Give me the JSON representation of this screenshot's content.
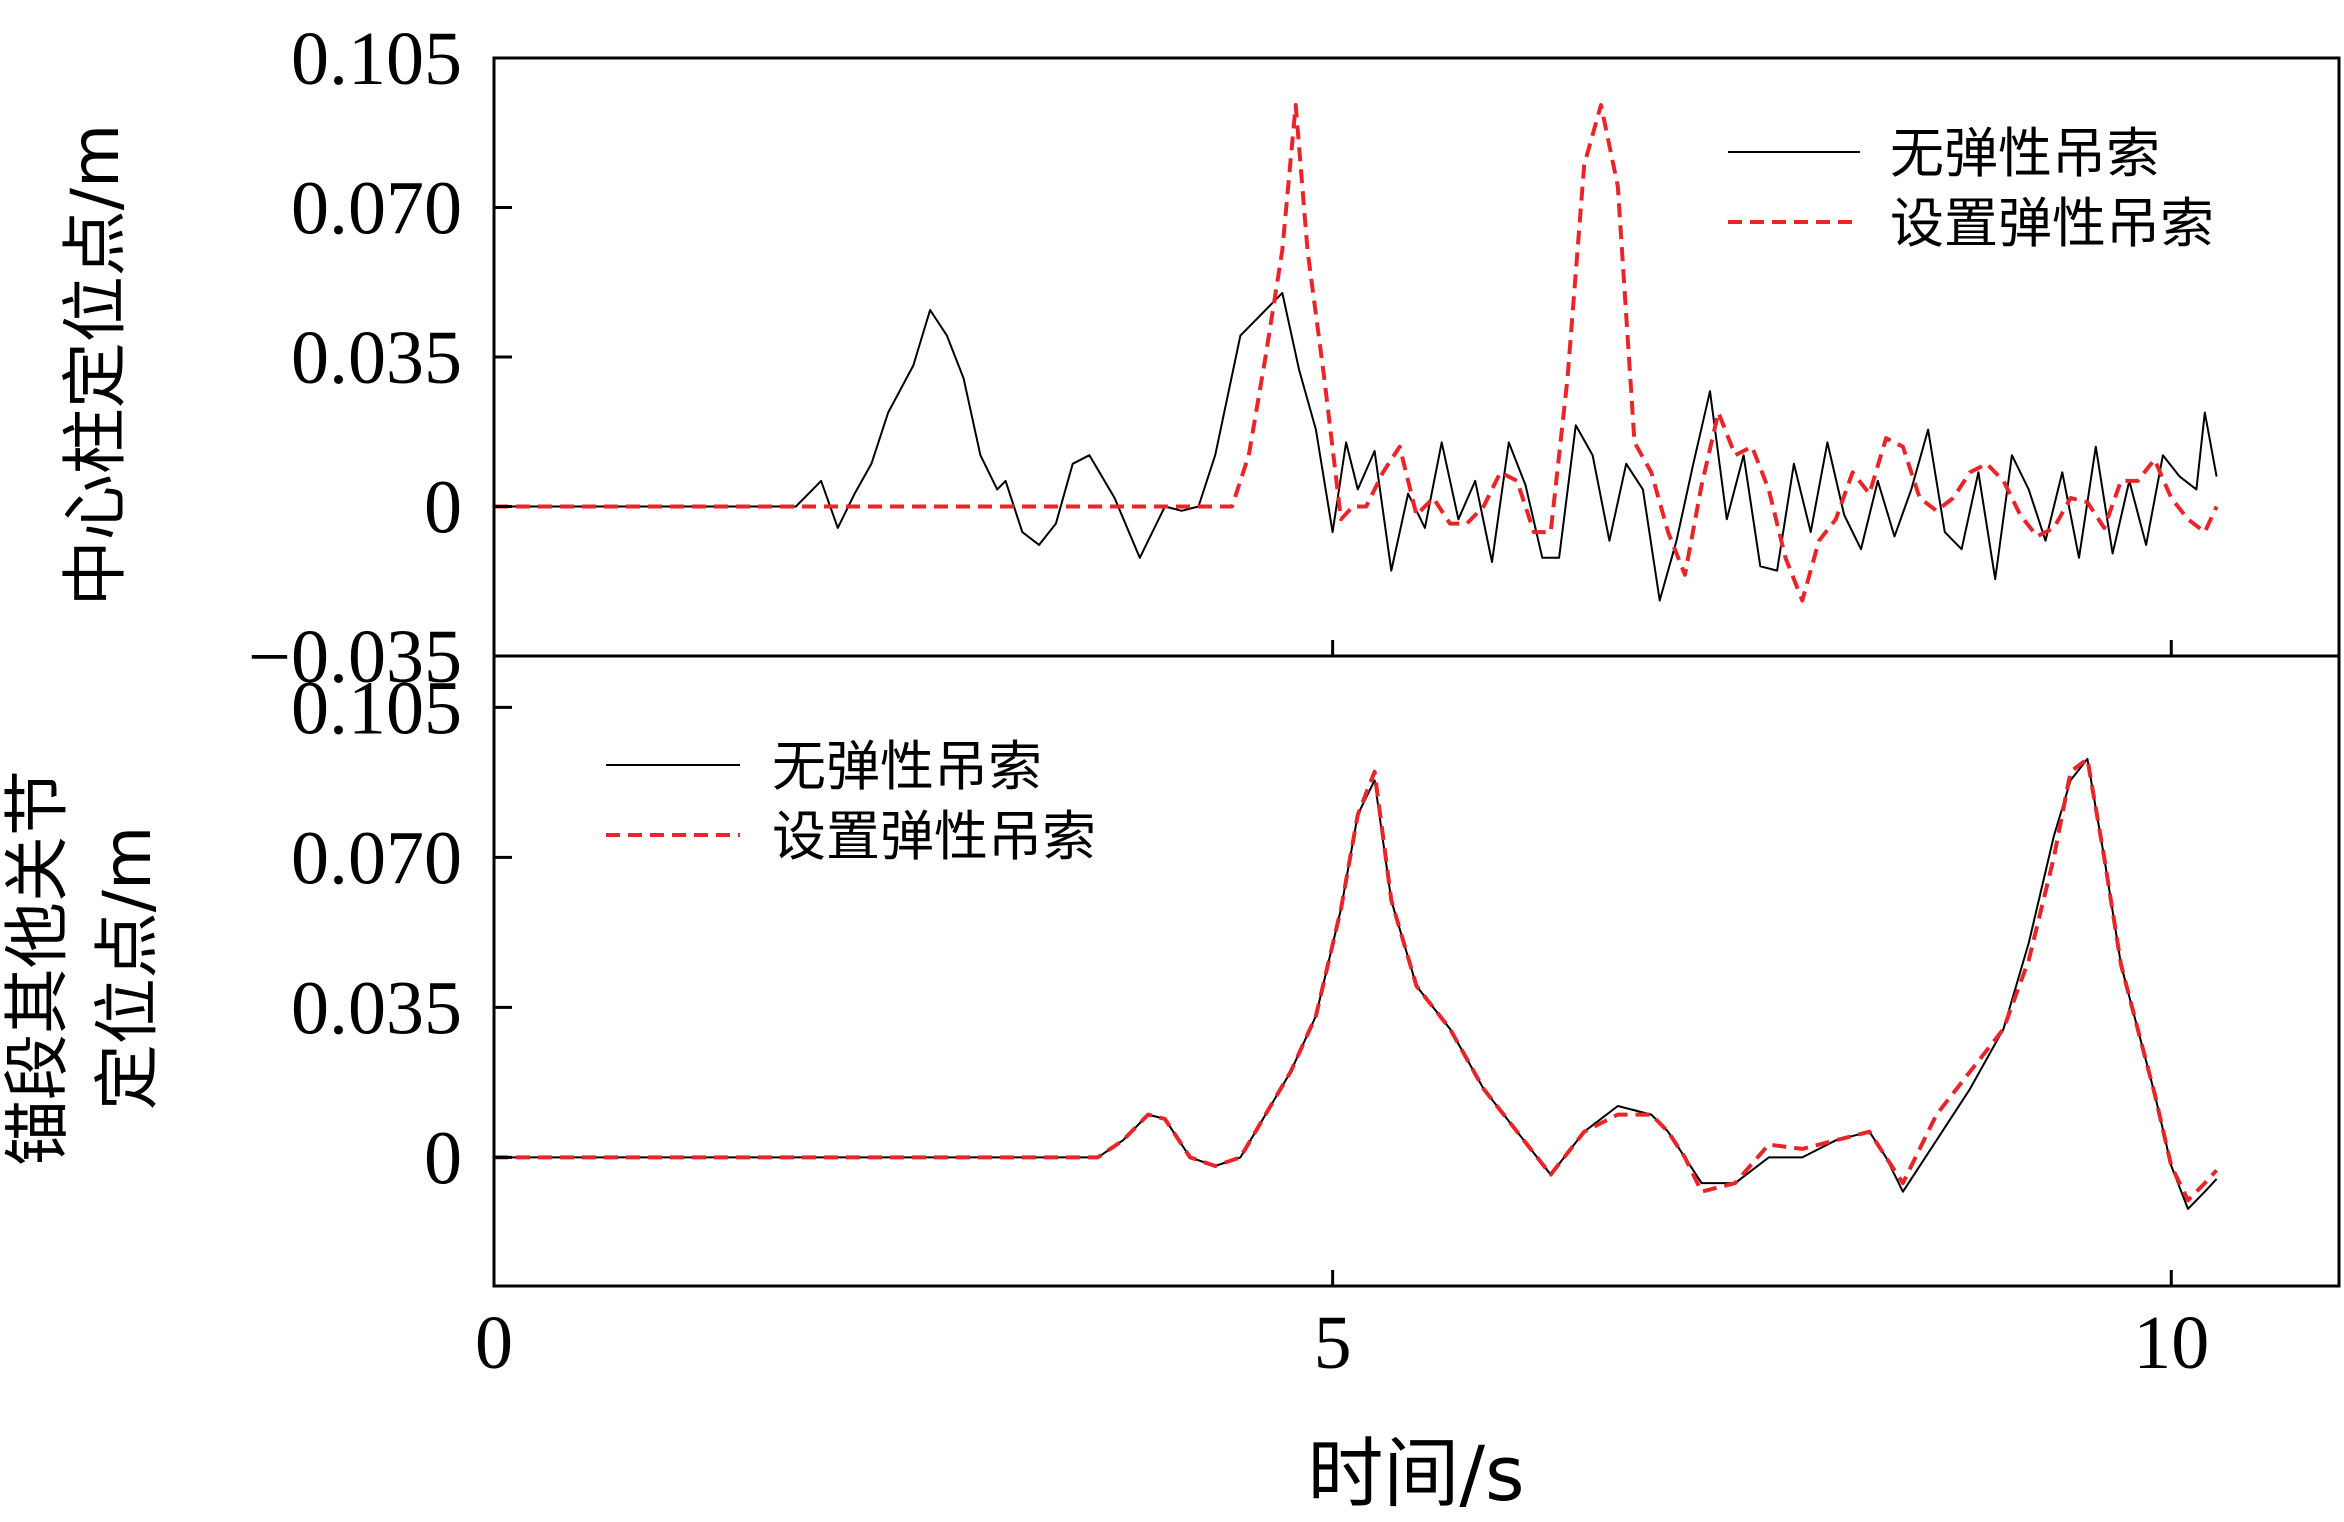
{
  "chart_data": [
    {
      "type": "line",
      "panel": "top",
      "ylabel": "中心柱定位点/m",
      "xlabel": "",
      "ylim": [
        -0.035,
        0.105
      ],
      "yticks": [
        "0.105",
        "0.070",
        "0.035",
        "0",
        "−0.035"
      ],
      "ytick_values": [
        0.105,
        0.07,
        0.035,
        0,
        -0.035
      ],
      "xlim": [
        0,
        11
      ],
      "xtick_values": [
        5,
        10
      ],
      "legend_position": "top-right",
      "series": [
        {
          "name": "无弹性吊索",
          "color": "#000000",
          "style": "solid",
          "x": [
            0,
            1,
            1.8,
            1.95,
            2.05,
            2.15,
            2.25,
            2.35,
            2.5,
            2.6,
            2.7,
            2.8,
            2.9,
            3.0,
            3.05,
            3.15,
            3.25,
            3.35,
            3.45,
            3.55,
            3.7,
            3.85,
            4.0,
            4.1,
            4.2,
            4.3,
            4.45,
            4.55,
            4.7,
            4.8,
            4.9,
            5.0,
            5.08,
            5.15,
            5.25,
            5.35,
            5.45,
            5.55,
            5.65,
            5.75,
            5.85,
            5.95,
            6.05,
            6.15,
            6.25,
            6.35,
            6.45,
            6.55,
            6.65,
            6.75,
            6.85,
            6.95,
            7.05,
            7.15,
            7.25,
            7.35,
            7.45,
            7.55,
            7.65,
            7.75,
            7.85,
            7.95,
            8.05,
            8.15,
            8.25,
            8.35,
            8.45,
            8.55,
            8.65,
            8.75,
            8.85,
            8.95,
            9.05,
            9.15,
            9.25,
            9.35,
            9.45,
            9.55,
            9.65,
            9.75,
            9.85,
            9.95,
            10.05,
            10.15,
            10.2,
            10.27
          ],
          "y": [
            0,
            0,
            0,
            0.006,
            -0.005,
            0.003,
            0.01,
            0.022,
            0.033,
            0.046,
            0.04,
            0.03,
            0.012,
            0.004,
            0.006,
            -0.006,
            -0.009,
            -0.004,
            0.01,
            0.012,
            0.002,
            -0.012,
            0.0,
            -0.001,
            0.0,
            0.012,
            0.04,
            0.044,
            0.05,
            0.032,
            0.018,
            -0.006,
            0.015,
            0.004,
            0.013,
            -0.015,
            0.003,
            -0.005,
            0.015,
            -0.003,
            0.006,
            -0.013,
            0.015,
            0.005,
            -0.012,
            -0.012,
            0.019,
            0.012,
            -0.008,
            0.01,
            0.004,
            -0.022,
            -0.008,
            0.01,
            0.027,
            -0.003,
            0.012,
            -0.014,
            -0.015,
            0.01,
            -0.006,
            0.015,
            -0.002,
            -0.01,
            0.006,
            -0.007,
            0.004,
            0.018,
            -0.006,
            -0.01,
            0.008,
            -0.017,
            0.012,
            0.004,
            -0.008,
            0.008,
            -0.012,
            0.014,
            -0.011,
            0.006,
            -0.009,
            0.012,
            0.007,
            0.004,
            0.022,
            0.007
          ]
        },
        {
          "name": "设置弹性吊索",
          "color": "#e8262a",
          "style": "dashed",
          "x": [
            0,
            1,
            2,
            3,
            4,
            4.4,
            4.5,
            4.6,
            4.7,
            4.78,
            4.85,
            4.95,
            5.05,
            5.12,
            5.2,
            5.3,
            5.4,
            5.5,
            5.6,
            5.7,
            5.8,
            5.9,
            6.0,
            6.1,
            6.2,
            6.3,
            6.4,
            6.5,
            6.6,
            6.7,
            6.8,
            6.9,
            7.0,
            7.1,
            7.2,
            7.3,
            7.4,
            7.5,
            7.6,
            7.7,
            7.8,
            7.9,
            8.0,
            8.1,
            8.2,
            8.3,
            8.4,
            8.5,
            8.6,
            8.7,
            8.8,
            8.9,
            9.0,
            9.1,
            9.2,
            9.3,
            9.4,
            9.5,
            9.6,
            9.7,
            9.8,
            9.9,
            10.0,
            10.1,
            10.2,
            10.27
          ],
          "y": [
            0,
            0,
            0,
            0,
            0,
            0.0,
            0.012,
            0.035,
            0.06,
            0.094,
            0.06,
            0.03,
            -0.003,
            0.0,
            0.0,
            0.008,
            0.014,
            -0.002,
            0.002,
            -0.004,
            -0.004,
            0.0,
            0.008,
            0.006,
            -0.006,
            -0.006,
            0.03,
            0.08,
            0.094,
            0.075,
            0.015,
            0.008,
            -0.006,
            -0.016,
            0.005,
            0.022,
            0.012,
            0.014,
            0.004,
            -0.012,
            -0.022,
            -0.008,
            -0.003,
            0.008,
            0.003,
            0.016,
            0.014,
            0.002,
            -0.001,
            0.002,
            0.008,
            0.01,
            0.006,
            -0.002,
            -0.007,
            -0.005,
            0.002,
            0.001,
            -0.005,
            0.006,
            0.006,
            0.011,
            0.002,
            -0.003,
            -0.006,
            0.0
          ]
        }
      ]
    },
    {
      "type": "line",
      "panel": "bottom",
      "ylabel": "锚段其他关节定位点/m",
      "ylabel_lines": [
        "锚段其他关节",
        "定位点/m"
      ],
      "xlabel": "时间/s",
      "ylim": [
        -0.03,
        0.117
      ],
      "yticks": [
        "0.105",
        "0.070",
        "0.035",
        "0"
      ],
      "ytick_values": [
        0.105,
        0.07,
        0.035,
        0
      ],
      "xlim": [
        0,
        11
      ],
      "xticks": [
        "0",
        "5",
        "10"
      ],
      "xtick_values": [
        0,
        5,
        10
      ],
      "legend_position": "top-left",
      "series": [
        {
          "name": "无弹性吊索",
          "color": "#000000",
          "style": "solid",
          "x": [
            0,
            1,
            2,
            3,
            3.6,
            3.75,
            3.9,
            4.0,
            4.15,
            4.3,
            4.45,
            4.6,
            4.75,
            4.9,
            5.05,
            5.15,
            5.25,
            5.35,
            5.5,
            5.7,
            5.9,
            6.1,
            6.3,
            6.5,
            6.7,
            6.9,
            7.0,
            7.1,
            7.2,
            7.4,
            7.6,
            7.8,
            8.0,
            8.2,
            8.3,
            8.4,
            8.6,
            8.8,
            9.0,
            9.15,
            9.3,
            9.4,
            9.5,
            9.6,
            9.7,
            9.8,
            9.9,
            10.0,
            10.1,
            10.2,
            10.27
          ],
          "y": [
            0,
            0,
            0,
            0,
            0,
            0.004,
            0.01,
            0.009,
            0.0,
            -0.002,
            0.0,
            0.01,
            0.02,
            0.033,
            0.058,
            0.08,
            0.088,
            0.06,
            0.04,
            0.03,
            0.016,
            0.006,
            -0.004,
            0.006,
            0.012,
            0.01,
            0.006,
            0.0,
            -0.006,
            -0.006,
            0.0,
            0.0,
            0.004,
            0.006,
            0.0,
            -0.008,
            0.004,
            0.016,
            0.03,
            0.05,
            0.075,
            0.088,
            0.093,
            0.07,
            0.045,
            0.03,
            0.015,
            -0.002,
            -0.012,
            -0.008,
            -0.005
          ]
        },
        {
          "name": "设置弹性吊索",
          "color": "#e8262a",
          "style": "dashed",
          "x": [
            0,
            1,
            2,
            3,
            3.6,
            3.75,
            3.9,
            4.0,
            4.15,
            4.3,
            4.45,
            4.6,
            4.75,
            4.9,
            5.05,
            5.15,
            5.25,
            5.35,
            5.5,
            5.7,
            5.9,
            6.1,
            6.3,
            6.5,
            6.7,
            6.9,
            7.0,
            7.1,
            7.2,
            7.4,
            7.6,
            7.8,
            8.0,
            8.2,
            8.3,
            8.4,
            8.6,
            8.8,
            9.0,
            9.15,
            9.3,
            9.4,
            9.5,
            9.6,
            9.7,
            9.8,
            9.9,
            10.0,
            10.1,
            10.2,
            10.27
          ],
          "y": [
            0,
            0,
            0,
            0,
            0,
            0.004,
            0.01,
            0.009,
            0.0,
            -0.002,
            0.0,
            0.01,
            0.02,
            0.033,
            0.058,
            0.08,
            0.09,
            0.06,
            0.04,
            0.03,
            0.016,
            0.006,
            -0.004,
            0.006,
            0.01,
            0.01,
            0.006,
            0.0,
            -0.008,
            -0.006,
            0.003,
            0.002,
            0.004,
            0.006,
            0.0,
            -0.006,
            0.01,
            0.02,
            0.03,
            0.046,
            0.07,
            0.09,
            0.093,
            0.07,
            0.045,
            0.03,
            0.015,
            -0.002,
            -0.01,
            -0.006,
            -0.003
          ]
        }
      ]
    }
  ]
}
